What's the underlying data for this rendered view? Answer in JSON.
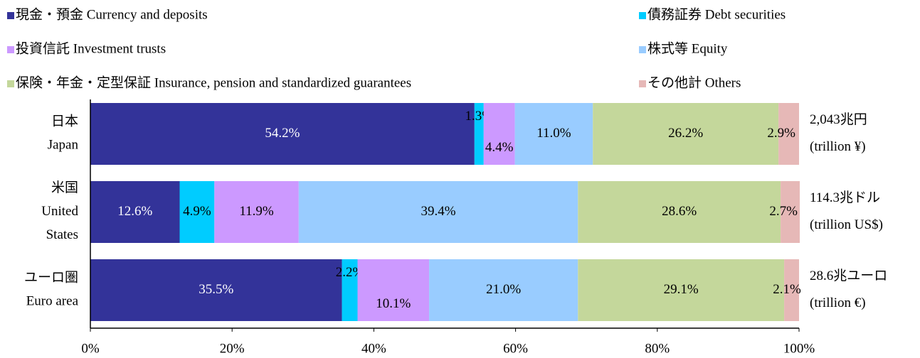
{
  "chart_data": {
    "type": "stacked_bar_horizontal",
    "categories": [
      [
        "日本",
        "Japan"
      ],
      [
        "米国",
        "United",
        "States"
      ],
      [
        "ユーロ圏",
        "Euro area"
      ]
    ],
    "series": [
      {
        "name": "現金・預金 Currency and deposits",
        "color": "#333399",
        "values": [
          54.2,
          12.6,
          35.5
        ],
        "value_labels": [
          "54.2%",
          "12.6%",
          "35.5%"
        ]
      },
      {
        "name": "債務証券 Debt securities",
        "color": "#00ccff",
        "values": [
          1.3,
          4.9,
          2.2
        ],
        "value_labels": [
          "1.3%",
          "4.9%",
          "2.2%"
        ]
      },
      {
        "name": "投資信託 Investment trusts",
        "color": "#cc99ff",
        "values": [
          4.4,
          11.9,
          10.1
        ],
        "value_labels": [
          "4.4%",
          "11.9%",
          "10.1%"
        ]
      },
      {
        "name": "株式等 Equity",
        "color": "#99ccff",
        "values": [
          11.0,
          39.4,
          21.0
        ],
        "value_labels": [
          "11.0%",
          "39.4%",
          "21.0%"
        ]
      },
      {
        "name": "保険・年金・定型保証 Insurance, pension and standardized guarantees",
        "color": "#c4d79b",
        "values": [
          26.2,
          28.6,
          29.1
        ],
        "value_labels": [
          "26.2%",
          "28.6%",
          "29.1%"
        ]
      },
      {
        "name": "その他計 Others",
        "color": "#e6b8b7",
        "values": [
          2.9,
          2.7,
          2.1
        ],
        "value_labels": [
          "2.9%",
          "2.7%",
          "2.1%"
        ]
      }
    ],
    "annotations": [
      [
        "2,043兆円",
        "(trillion ¥)"
      ],
      [
        "114.3兆ドル",
        "(trillion US$)"
      ],
      [
        "28.6兆ユーロ",
        "(trillion €)"
      ]
    ],
    "xlim": [
      0,
      100
    ],
    "xticks": [
      {
        "value": 0,
        "label": "0%"
      },
      {
        "value": 20,
        "label": "20%"
      },
      {
        "value": 40,
        "label": "40%"
      },
      {
        "value": 60,
        "label": "60%"
      },
      {
        "value": 80,
        "label": "80%"
      },
      {
        "value": 100,
        "label": "100%"
      }
    ]
  }
}
